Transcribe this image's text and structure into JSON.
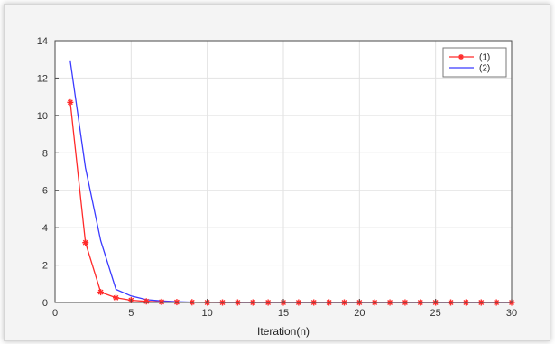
{
  "chart_data": {
    "type": "line",
    "title": "",
    "xlabel": "Iteration(n)",
    "ylabel": "",
    "xlim": [
      0,
      30
    ],
    "ylim": [
      0,
      14
    ],
    "xticks": [
      0,
      5,
      10,
      15,
      20,
      25,
      30
    ],
    "yticks": [
      0,
      2,
      4,
      6,
      8,
      10,
      12,
      14
    ],
    "grid": true,
    "legend_position": "top-right",
    "series": [
      {
        "name": "(1)",
        "color": "#ff2a2a",
        "marker": "asterisk",
        "x": [
          1,
          2,
          3,
          4,
          5,
          6,
          7,
          8,
          9,
          10,
          11,
          12,
          13,
          14,
          15,
          16,
          17,
          18,
          19,
          20,
          21,
          22,
          23,
          24,
          25,
          26,
          27,
          28,
          29,
          30
        ],
        "y": [
          10.7,
          3.2,
          0.55,
          0.25,
          0.12,
          0.06,
          0.03,
          0.02,
          0.01,
          0,
          0,
          0,
          0,
          0,
          0,
          0,
          0,
          0,
          0,
          0,
          0,
          0,
          0,
          0,
          0,
          0,
          0,
          0,
          0,
          0
        ]
      },
      {
        "name": "(2)",
        "color": "#3a3aff",
        "marker": "none",
        "x": [
          1,
          2,
          3,
          4,
          5,
          6,
          7,
          8,
          9,
          10,
          11,
          12,
          13,
          14,
          15,
          16,
          17,
          18,
          19,
          20,
          21,
          22,
          23,
          24,
          25,
          26,
          27,
          28,
          29,
          30
        ],
        "y": [
          12.9,
          7.2,
          3.3,
          0.7,
          0.35,
          0.15,
          0.08,
          0.04,
          0.02,
          0.01,
          0,
          0,
          0,
          0,
          0,
          0,
          0,
          0,
          0,
          0,
          0,
          0,
          0,
          0,
          0,
          0,
          0,
          0,
          0,
          0
        ]
      }
    ]
  }
}
